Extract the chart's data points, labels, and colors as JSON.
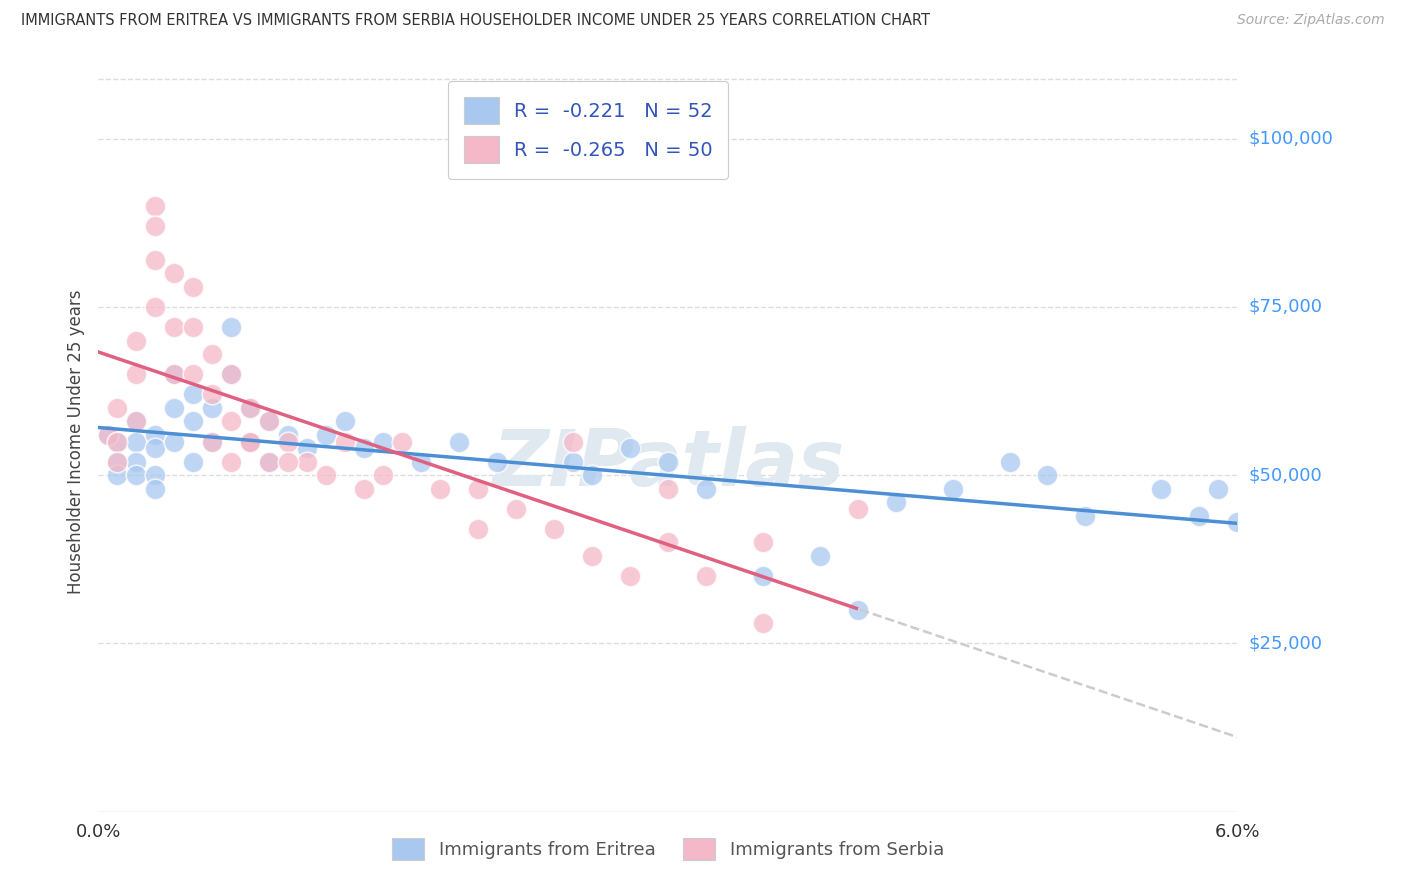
{
  "title": "IMMIGRANTS FROM ERITREA VS IMMIGRANTS FROM SERBIA HOUSEHOLDER INCOME UNDER 25 YEARS CORRELATION CHART",
  "source": "Source: ZipAtlas.com",
  "ylabel": "Householder Income Under 25 years",
  "ytick_labels": [
    "$25,000",
    "$50,000",
    "$75,000",
    "$100,000"
  ],
  "ytick_values": [
    25000,
    50000,
    75000,
    100000
  ],
  "xmin": 0.0,
  "xmax": 0.06,
  "ymin": 0,
  "ymax": 110000,
  "watermark": "ZIPatlas",
  "eritrea_color": "#a8c8f0",
  "serbia_color": "#f4b8c8",
  "eritrea_line_color": "#4d8fd4",
  "serbia_line_color": "#e06080",
  "dashed_color": "#cccccc",
  "legend_blue_color": "#3355bb",
  "legend_r_eritrea": "-0.221",
  "legend_n_eritrea": "52",
  "legend_r_serbia": "-0.265",
  "legend_n_serbia": "50",
  "grid_color": "#dddddd",
  "bottom_legend_label1": "Immigrants from Eritrea",
  "bottom_legend_label2": "Immigrants from Serbia",
  "eritrea_x": [
    0.0005,
    0.001,
    0.001,
    0.001,
    0.002,
    0.002,
    0.002,
    0.002,
    0.003,
    0.003,
    0.003,
    0.003,
    0.004,
    0.004,
    0.004,
    0.005,
    0.005,
    0.005,
    0.006,
    0.006,
    0.007,
    0.007,
    0.008,
    0.008,
    0.009,
    0.009,
    0.01,
    0.011,
    0.012,
    0.013,
    0.014,
    0.015,
    0.017,
    0.019,
    0.021,
    0.025,
    0.026,
    0.028,
    0.03,
    0.032,
    0.035,
    0.038,
    0.04,
    0.042,
    0.045,
    0.048,
    0.05,
    0.052,
    0.056,
    0.058,
    0.059,
    0.06
  ],
  "eritrea_y": [
    56000,
    55000,
    52000,
    50000,
    58000,
    55000,
    52000,
    50000,
    56000,
    54000,
    50000,
    48000,
    65000,
    60000,
    55000,
    62000,
    58000,
    52000,
    60000,
    55000,
    72000,
    65000,
    60000,
    55000,
    58000,
    52000,
    56000,
    54000,
    56000,
    58000,
    54000,
    55000,
    52000,
    55000,
    52000,
    52000,
    50000,
    54000,
    52000,
    48000,
    35000,
    38000,
    30000,
    46000,
    48000,
    52000,
    50000,
    44000,
    48000,
    44000,
    48000,
    43000
  ],
  "serbia_x": [
    0.0005,
    0.001,
    0.001,
    0.001,
    0.002,
    0.002,
    0.002,
    0.003,
    0.003,
    0.003,
    0.003,
    0.004,
    0.004,
    0.004,
    0.005,
    0.005,
    0.005,
    0.006,
    0.006,
    0.006,
    0.007,
    0.007,
    0.007,
    0.008,
    0.008,
    0.009,
    0.009,
    0.01,
    0.011,
    0.012,
    0.013,
    0.014,
    0.015,
    0.016,
    0.018,
    0.02,
    0.022,
    0.024,
    0.026,
    0.028,
    0.03,
    0.032,
    0.035,
    0.01,
    0.008,
    0.02,
    0.025,
    0.03,
    0.035,
    0.04
  ],
  "serbia_y": [
    56000,
    60000,
    55000,
    52000,
    70000,
    65000,
    58000,
    90000,
    87000,
    82000,
    75000,
    80000,
    72000,
    65000,
    78000,
    72000,
    65000,
    68000,
    62000,
    55000,
    65000,
    58000,
    52000,
    60000,
    55000,
    58000,
    52000,
    55000,
    52000,
    50000,
    55000,
    48000,
    50000,
    55000,
    48000,
    42000,
    45000,
    42000,
    38000,
    35000,
    40000,
    35000,
    28000,
    52000,
    55000,
    48000,
    55000,
    48000,
    40000,
    45000
  ]
}
